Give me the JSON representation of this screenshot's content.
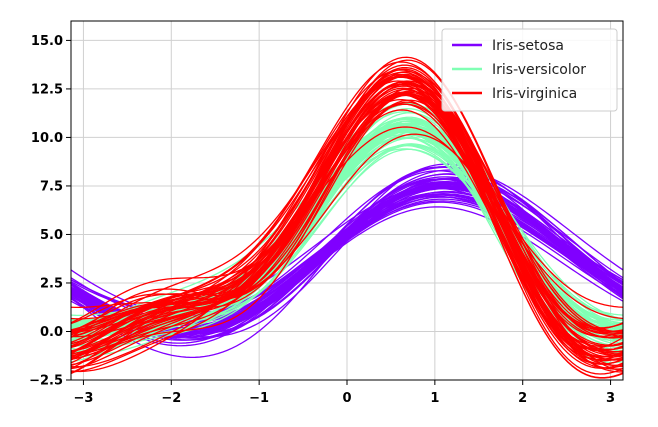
{
  "chart_data": {
    "type": "line",
    "title": "",
    "xlabel": "",
    "ylabel": "",
    "xlim": [
      -3.14159,
      3.14159
    ],
    "ylim": [
      -2.5,
      16.0
    ],
    "xticks": [
      -3,
      -2,
      -1,
      0,
      1,
      2,
      3
    ],
    "xtick_labels": [
      "−3",
      "−2",
      "−1",
      "0",
      "1",
      "2",
      "3"
    ],
    "yticks": [
      -2.5,
      0.0,
      2.5,
      5.0,
      7.5,
      10.0,
      12.5,
      15.0
    ],
    "ytick_labels": [
      "−2.5",
      "0.0",
      "2.5",
      "5.0",
      "7.5",
      "10.0",
      "12.5",
      "15.0"
    ],
    "grid": true,
    "legend_position": "upper-right",
    "series": [
      {
        "name": "Iris-setosa",
        "color": "#8000ff",
        "representative_points": [
          [
            -3.14,
            2.3
          ],
          [
            -2.0,
            0.4
          ],
          [
            -1.5,
            0.0
          ],
          [
            -1.0,
            1.0
          ],
          [
            0.0,
            4.4
          ],
          [
            0.9,
            7.4
          ],
          [
            2.0,
            5.4
          ],
          [
            3.14,
            2.0
          ]
        ]
      },
      {
        "name": "Iris-versicolor",
        "color": "#80ffb4",
        "representative_points": [
          [
            -3.14,
            0.3
          ],
          [
            -2.0,
            0.8
          ],
          [
            -1.0,
            2.2
          ],
          [
            0.0,
            6.2
          ],
          [
            0.7,
            9.4
          ],
          [
            1.5,
            7.5
          ],
          [
            2.0,
            4.0
          ],
          [
            3.14,
            0.2
          ]
        ]
      },
      {
        "name": "Iris-virginica",
        "color": "#ff0000",
        "representative_points": [
          [
            -3.14,
            -0.8
          ],
          [
            -2.0,
            1.5
          ],
          [
            -1.0,
            3.5
          ],
          [
            0.0,
            9.5
          ],
          [
            0.6,
            13.0
          ],
          [
            1.5,
            8.5
          ],
          [
            2.0,
            3.0
          ],
          [
            3.14,
            -0.9
          ]
        ]
      }
    ]
  }
}
